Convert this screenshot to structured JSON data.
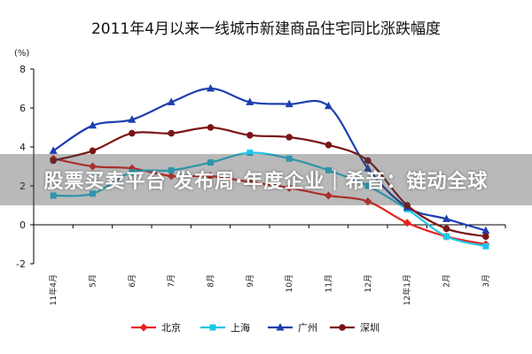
{
  "chart_data": {
    "type": "line",
    "title": "2011年4月以来一线城市新建商品住宅同比涨跌幅度",
    "ylabel": "(%)",
    "ylim": [
      -2,
      8
    ],
    "yticks": [
      -2,
      0,
      2,
      4,
      6,
      8
    ],
    "categories": [
      "11年4月",
      "5月",
      "6月",
      "7月",
      "8月",
      "9月",
      "10月",
      "11月",
      "12月",
      "12年1月",
      "2月",
      "3月"
    ],
    "series": [
      {
        "name": "北京",
        "color": "#e8221c",
        "marker": "diamond",
        "values": [
          3.4,
          3.0,
          2.9,
          2.5,
          2.5,
          2.2,
          1.9,
          1.5,
          1.2,
          0.1,
          -0.6,
          -1.0
        ]
      },
      {
        "name": "上海",
        "color": "#1ec6e8",
        "marker": "square",
        "values": [
          1.5,
          1.6,
          2.7,
          2.8,
          3.2,
          3.7,
          3.4,
          2.8,
          2.0,
          0.8,
          -0.6,
          -1.1
        ]
      },
      {
        "name": "广州",
        "color": "#1c3fb0",
        "marker": "triangle",
        "values": [
          3.8,
          5.1,
          5.4,
          6.3,
          7.0,
          6.3,
          6.2,
          6.1,
          2.9,
          0.9,
          0.3,
          -0.3
        ]
      },
      {
        "name": "深圳",
        "color": "#7a1516",
        "marker": "circle",
        "values": [
          3.3,
          3.8,
          4.7,
          4.7,
          5.0,
          4.6,
          4.5,
          4.1,
          3.3,
          1.0,
          -0.2,
          -0.6
        ]
      }
    ]
  },
  "overlay": {
    "text": "股票买卖平台 发布周·年度企业｜希音：链动全球"
  }
}
